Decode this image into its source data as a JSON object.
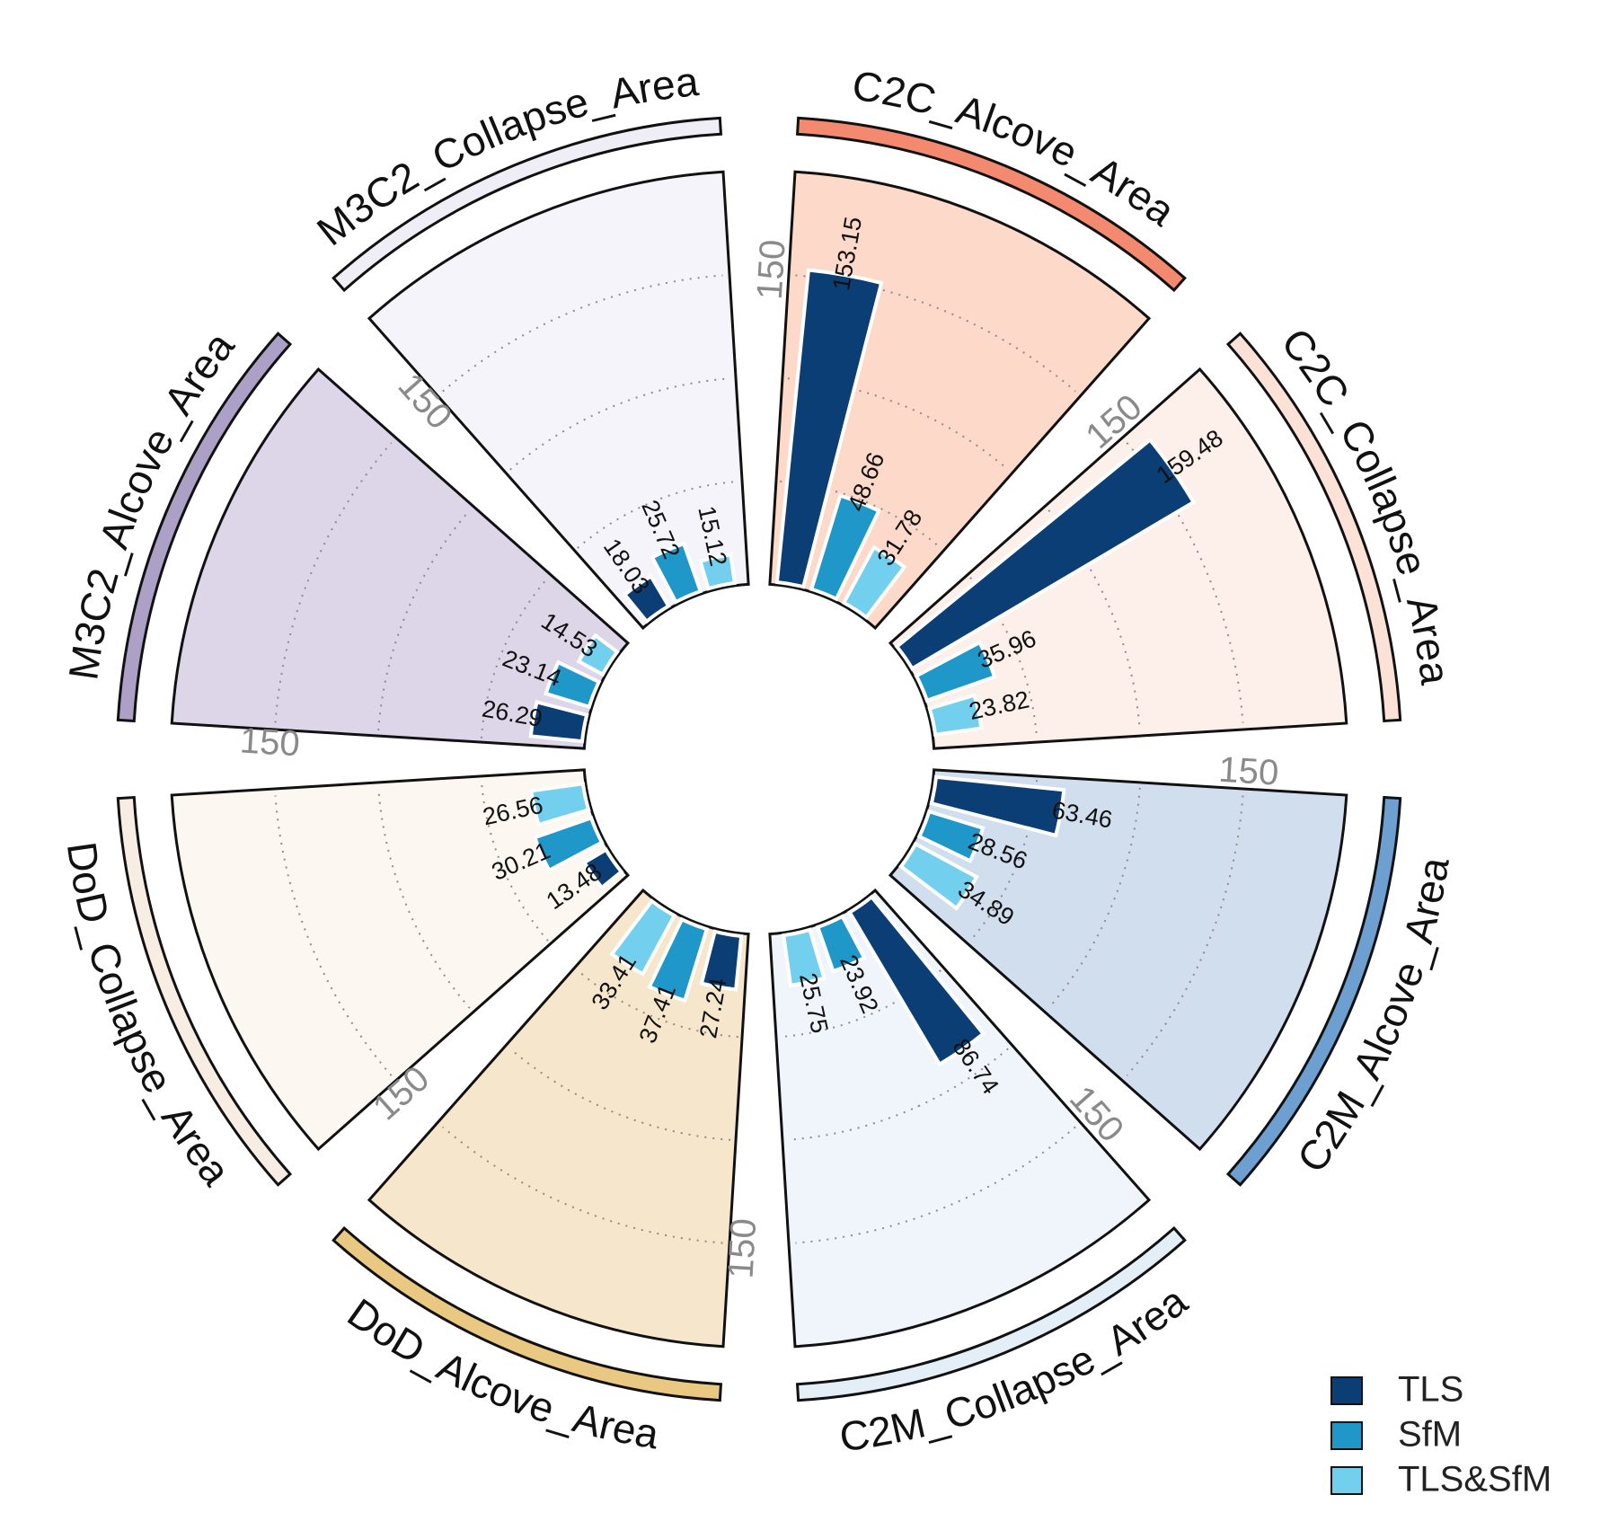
{
  "chart_data": {
    "type": "bar",
    "subtype": "circular-grouped-bar",
    "title": "",
    "categories": [
      "C2C_Alcove_Area",
      "C2C_Collapse_Area",
      "C2M_Alcove_Area",
      "C2M_Collapse_Area",
      "DoD_Alcove_Area",
      "DoD_Collapse_Area",
      "M3C2_Alcove_Area",
      "M3C2_Collapse_Area"
    ],
    "series": [
      {
        "name": "TLS",
        "values": [
          153.15,
          159.48,
          63.46,
          86.74,
          27.24,
          13.48,
          26.29,
          18.03
        ]
      },
      {
        "name": "SfM",
        "values": [
          48.66,
          35.96,
          28.56,
          23.92,
          37.41,
          30.21,
          23.14,
          25.72
        ]
      },
      {
        "name": "TLS&SfM",
        "values": [
          31.78,
          23.82,
          34.89,
          25.75,
          33.41,
          26.56,
          14.53,
          15.12
        ]
      }
    ],
    "value_labels": [
      [
        "153.15",
        "48.66",
        "31.78"
      ],
      [
        "159.48",
        "35.96",
        "23.82"
      ],
      [
        "63.46",
        "28.56",
        "34.89"
      ],
      [
        "86.74",
        "23.92",
        "25.75"
      ],
      [
        "27.24",
        "37.41",
        "33.41"
      ],
      [
        "13.48",
        "30.21",
        "26.56"
      ],
      [
        "26.29",
        "23.14",
        "14.53"
      ],
      [
        "18.03",
        "25.72",
        "15.12"
      ]
    ],
    "axis_max_label": "150",
    "ylim": [
      0,
      200
    ],
    "gridlines": [
      50,
      100,
      150
    ],
    "legend_position": "bottom-right",
    "colors": {
      "series": [
        "#0b3e74",
        "#1f97c8",
        "#72cfee"
      ],
      "sector_fills": [
        "#fdd9c9",
        "#fdf0ea",
        "#d1deee",
        "#f0f5fb",
        "#f6e6cb",
        "#fcf7f0",
        "#dcd6e8",
        "#f5f4fa"
      ],
      "outer_ring": [
        "#f38a70",
        "#fbe1d6",
        "#6d9fd1",
        "#e4eef7",
        "#e9c882",
        "#f8ede2",
        "#aca0c7",
        "#efedf5"
      ]
    }
  }
}
